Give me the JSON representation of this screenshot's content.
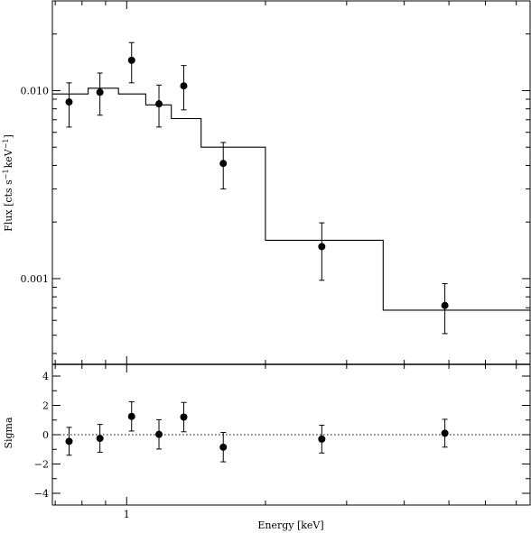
{
  "chart_data": [
    {
      "panel": "spectrum",
      "type": "scatter",
      "ylabel": "Flux [cts s^-1 keV^-1]",
      "ylabel_parts": {
        "base": "Flux [cts s",
        "e1": "−1",
        "mid": "keV",
        "e2": "−1",
        "end": "]"
      },
      "xscale": "log",
      "yscale": "log",
      "xlim": [
        0.69,
        7.5
      ],
      "ylim": [
        0.00035,
        0.03
      ],
      "yticks_major": [
        0.001,
        0.01
      ],
      "ytick_labels": [
        "0.001",
        "0.010"
      ],
      "data": [
        {
          "x": 0.75,
          "y": 0.0087,
          "ylo": 0.0064,
          "yhi": 0.011
        },
        {
          "x": 0.875,
          "y": 0.0098,
          "ylo": 0.0074,
          "yhi": 0.0124
        },
        {
          "x": 1.025,
          "y": 0.0145,
          "ylo": 0.011,
          "yhi": 0.018
        },
        {
          "x": 1.175,
          "y": 0.0085,
          "ylo": 0.0064,
          "yhi": 0.0107
        },
        {
          "x": 1.33,
          "y": 0.0106,
          "ylo": 0.0079,
          "yhi": 0.0136
        },
        {
          "x": 1.62,
          "y": 0.0041,
          "ylo": 0.003,
          "yhi": 0.0053
        },
        {
          "x": 2.65,
          "y": 0.00148,
          "ylo": 0.00098,
          "yhi": 0.00198
        },
        {
          "x": 4.9,
          "y": 0.00072,
          "ylo": 0.00051,
          "yhi": 0.00094
        }
      ],
      "model_steps": [
        {
          "x0": 0.69,
          "x1": 0.825,
          "y": 0.0096
        },
        {
          "x0": 0.825,
          "x1": 0.96,
          "y": 0.0103
        },
        {
          "x0": 0.96,
          "x1": 1.1,
          "y": 0.0096
        },
        {
          "x0": 1.1,
          "x1": 1.25,
          "y": 0.0084
        },
        {
          "x0": 1.25,
          "x1": 1.45,
          "y": 0.0071
        },
        {
          "x0": 1.45,
          "x1": 2.0,
          "y": 0.005
        },
        {
          "x0": 2.0,
          "x1": 3.6,
          "y": 0.0016
        },
        {
          "x0": 3.6,
          "x1": 7.5,
          "y": 0.00068
        }
      ]
    },
    {
      "panel": "residuals",
      "type": "scatter",
      "xlabel": "Energy [keV]",
      "ylabel": "Sigma",
      "xscale": "log",
      "xlim": [
        0.69,
        7.5
      ],
      "ylim": [
        -4.8,
        4.8
      ],
      "yticks": [
        -4,
        -2,
        0,
        2,
        4
      ],
      "ytick_labels": [
        "−4",
        "−2",
        "0",
        "2",
        "4"
      ],
      "xtick_labels": [
        {
          "value": 1,
          "label": "1"
        }
      ],
      "reference_line": {
        "y": 0,
        "style": "dotted"
      },
      "data": [
        {
          "x": 0.75,
          "y": -0.45,
          "err": 0.95
        },
        {
          "x": 0.875,
          "y": -0.25,
          "err": 0.95
        },
        {
          "x": 1.025,
          "y": 1.25,
          "err": 1.0
        },
        {
          "x": 1.175,
          "y": 0.02,
          "err": 1.0
        },
        {
          "x": 1.33,
          "y": 1.2,
          "err": 1.0
        },
        {
          "x": 1.62,
          "y": -0.85,
          "err": 1.0
        },
        {
          "x": 2.65,
          "y": -0.3,
          "err": 0.95
        },
        {
          "x": 4.9,
          "y": 0.1,
          "err": 0.95
        }
      ]
    }
  ]
}
